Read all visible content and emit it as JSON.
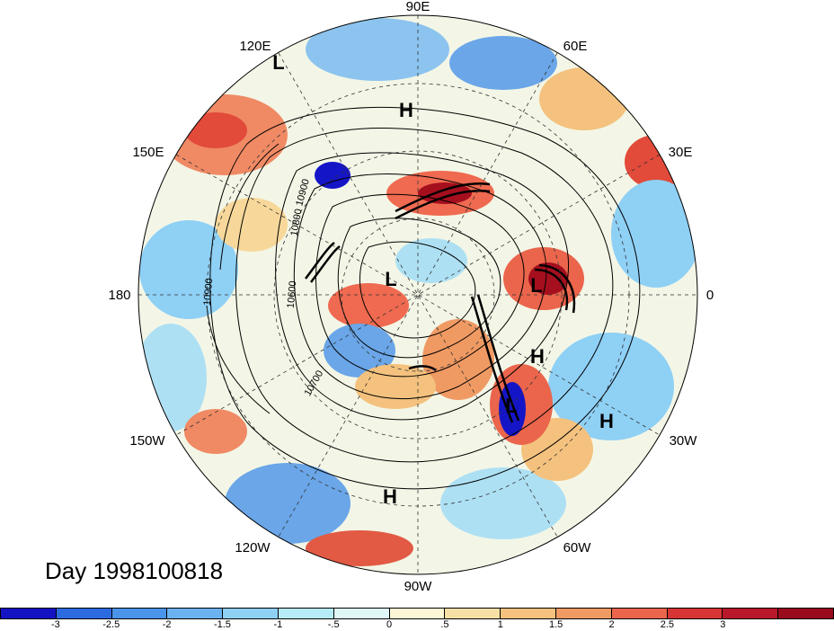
{
  "map": {
    "projection": "north-polar-stereographic",
    "longitude_labels": {
      "top": "90E",
      "upper_left": "120E",
      "upper_right": "60E",
      "left_upper": "150E",
      "right_upper": "30E",
      "left": "180",
      "right": "0",
      "left_lower": "150W",
      "right_lower": "30W",
      "lower_left": "120W",
      "lower_right": "60W",
      "bottom": "90W"
    },
    "pressure_centers": [
      "L",
      "H",
      "L",
      "L",
      "H",
      "L",
      "H",
      "H"
    ],
    "contour_labels": [
      "10900",
      "10800",
      "10600",
      "10900",
      "10700"
    ],
    "colors": {
      "strong_negative": "#1515c8",
      "negative": "#5ea6ee",
      "weak_negative": "#aee0f4",
      "weak_positive": "#f7d89a",
      "positive": "#ef6a50",
      "strong_positive": "#a50f1e"
    }
  },
  "title": "Day 1998100818",
  "colorbar": {
    "colors": [
      "#1313c4",
      "#2c6ae0",
      "#4a95ea",
      "#6bb2f0",
      "#8fd0f5",
      "#b6ecf8",
      "#e0f7f8",
      "#fdf7d6",
      "#f7e0a5",
      "#f4c27e",
      "#f09a63",
      "#ea654c",
      "#d73535",
      "#b8182a",
      "#990a1d"
    ],
    "ticks": [
      "-3",
      "-2.5",
      "-2",
      "-1.5",
      "-1",
      "-.5",
      "0",
      ".5",
      "1",
      "1.5",
      "2",
      "2.5",
      "3"
    ]
  }
}
